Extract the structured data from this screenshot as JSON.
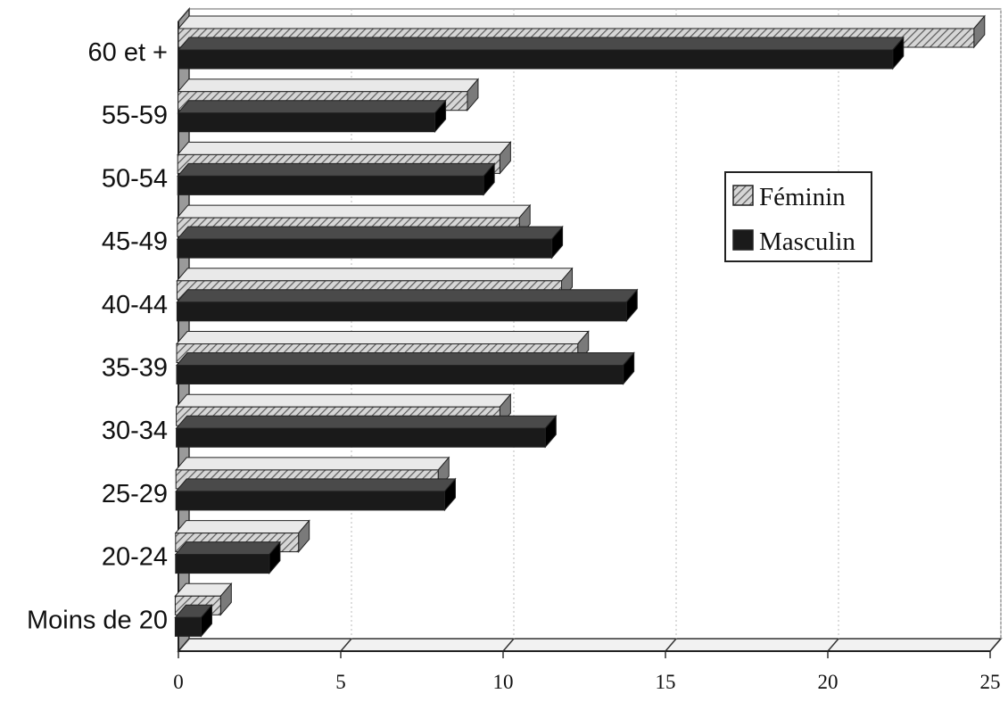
{
  "chart_data": {
    "type": "bar",
    "orientation": "horizontal",
    "style": "3d",
    "categories": [
      "60 et +",
      "55-59",
      "50-54",
      "45-49",
      "40-44",
      "35-39",
      "30-34",
      "25-29",
      "20-24",
      "Moins de 20"
    ],
    "series": [
      {
        "name": "Féminin",
        "values": [
          24.5,
          8.9,
          9.9,
          10.5,
          11.8,
          12.3,
          9.9,
          8.0,
          3.7,
          1.3
        ]
      },
      {
        "name": "Masculin",
        "values": [
          22.0,
          7.9,
          9.4,
          11.5,
          13.8,
          13.7,
          11.3,
          8.2,
          2.8,
          0.7
        ]
      }
    ],
    "xlim": [
      0,
      25
    ],
    "xticks": [
      "0",
      "5",
      "10",
      "15",
      "20",
      "25"
    ],
    "grid": true,
    "legend_position": "right",
    "colors": {
      "Féminin": "#bdbdbd",
      "Masculin": "#1a1a1a"
    }
  }
}
